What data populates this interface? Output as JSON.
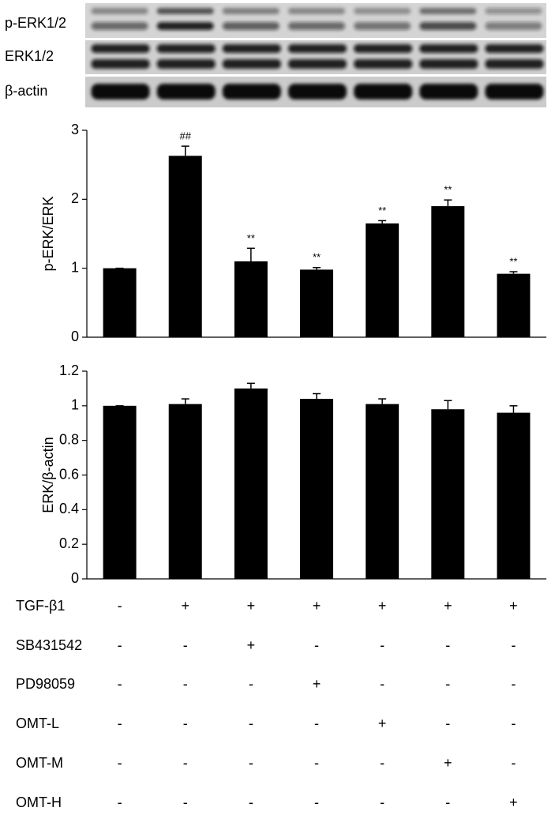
{
  "blot": {
    "labels": [
      "p-ERK1/2",
      "ERK1/2",
      "β-actin"
    ]
  },
  "chart_data": [
    {
      "type": "bar",
      "ylabel": "p-ERK/ERK",
      "color": "#000000",
      "values": [
        1.0,
        2.63,
        1.1,
        0.98,
        1.65,
        1.9,
        0.92
      ],
      "errors": [
        0,
        0.14,
        0.19,
        0.03,
        0.04,
        0.09,
        0.03
      ],
      "annotations": [
        null,
        "##",
        "**",
        "**",
        "**",
        "**",
        "**"
      ],
      "ylim": [
        0,
        3
      ],
      "yticks": [
        0,
        1,
        2,
        3
      ]
    },
    {
      "type": "bar",
      "ylabel": "ERK/β-actin",
      "color": "#000000",
      "values": [
        1.0,
        1.01,
        1.1,
        1.04,
        1.01,
        0.98,
        0.96
      ],
      "errors": [
        0,
        0.03,
        0.03,
        0.03,
        0.03,
        0.05,
        0.04
      ],
      "ylim": [
        0,
        1.2
      ],
      "yticks": [
        0,
        0.2,
        0.4,
        0.6,
        0.8,
        1,
        1.2
      ]
    }
  ],
  "treatments": {
    "rows": [
      {
        "name": "TGF-β1",
        "cells": [
          "-",
          "+",
          "+",
          "+",
          "+",
          "+",
          "+"
        ]
      },
      {
        "name": "SB431542",
        "cells": [
          "-",
          "-",
          "+",
          "-",
          "-",
          "-",
          "-"
        ]
      },
      {
        "name": "PD98059",
        "cells": [
          "-",
          "-",
          "-",
          "+",
          "-",
          "-",
          "-"
        ]
      },
      {
        "name": "OMT-L",
        "cells": [
          "-",
          "-",
          "-",
          "-",
          "+",
          "-",
          "-"
        ]
      },
      {
        "name": "OMT-M",
        "cells": [
          "-",
          "-",
          "-",
          "-",
          "-",
          "+",
          "-"
        ]
      },
      {
        "name": "OMT-H",
        "cells": [
          "-",
          "-",
          "-",
          "-",
          "-",
          "-",
          "+"
        ]
      }
    ]
  }
}
